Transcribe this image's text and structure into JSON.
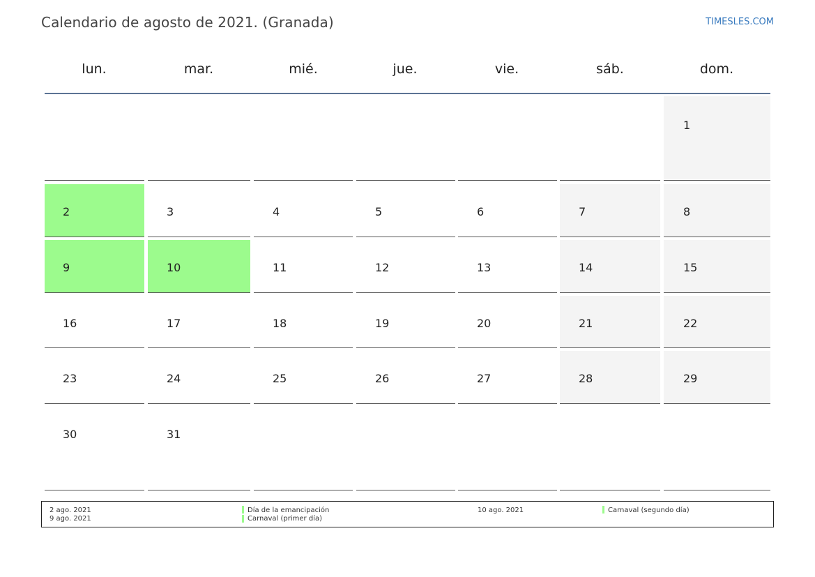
{
  "header": {
    "title": "Calendario de agosto de 2021. (Granada)",
    "site": "TIMESLES.COM"
  },
  "calendar": {
    "weekdays": [
      "lun.",
      "mar.",
      "mié.",
      "jue.",
      "vie.",
      "sáb.",
      "dom."
    ],
    "weeks": [
      [
        "",
        "",
        "",
        "",
        "",
        "",
        "1"
      ],
      [
        "2",
        "3",
        "4",
        "5",
        "6",
        "7",
        "8"
      ],
      [
        "9",
        "10",
        "11",
        "12",
        "13",
        "14",
        "15"
      ],
      [
        "16",
        "17",
        "18",
        "19",
        "20",
        "21",
        "22"
      ],
      [
        "23",
        "24",
        "25",
        "26",
        "27",
        "28",
        "29"
      ],
      [
        "30",
        "31",
        "",
        "",
        "",
        "",
        ""
      ]
    ],
    "holiday_days": [
      "2",
      "9",
      "10"
    ],
    "colors": {
      "holiday": "#9cfb8d",
      "weekend": "#f4f4f4",
      "header_rule": "#5b7394"
    }
  },
  "legend": {
    "left": [
      {
        "date": "2 ago. 2021",
        "name": "Día de la emancipación"
      },
      {
        "date": "9 ago. 2021",
        "name": "Carnaval (primer día)"
      }
    ],
    "right": [
      {
        "date": "10 ago. 2021",
        "name": "Carnaval (segundo día)"
      }
    ]
  }
}
